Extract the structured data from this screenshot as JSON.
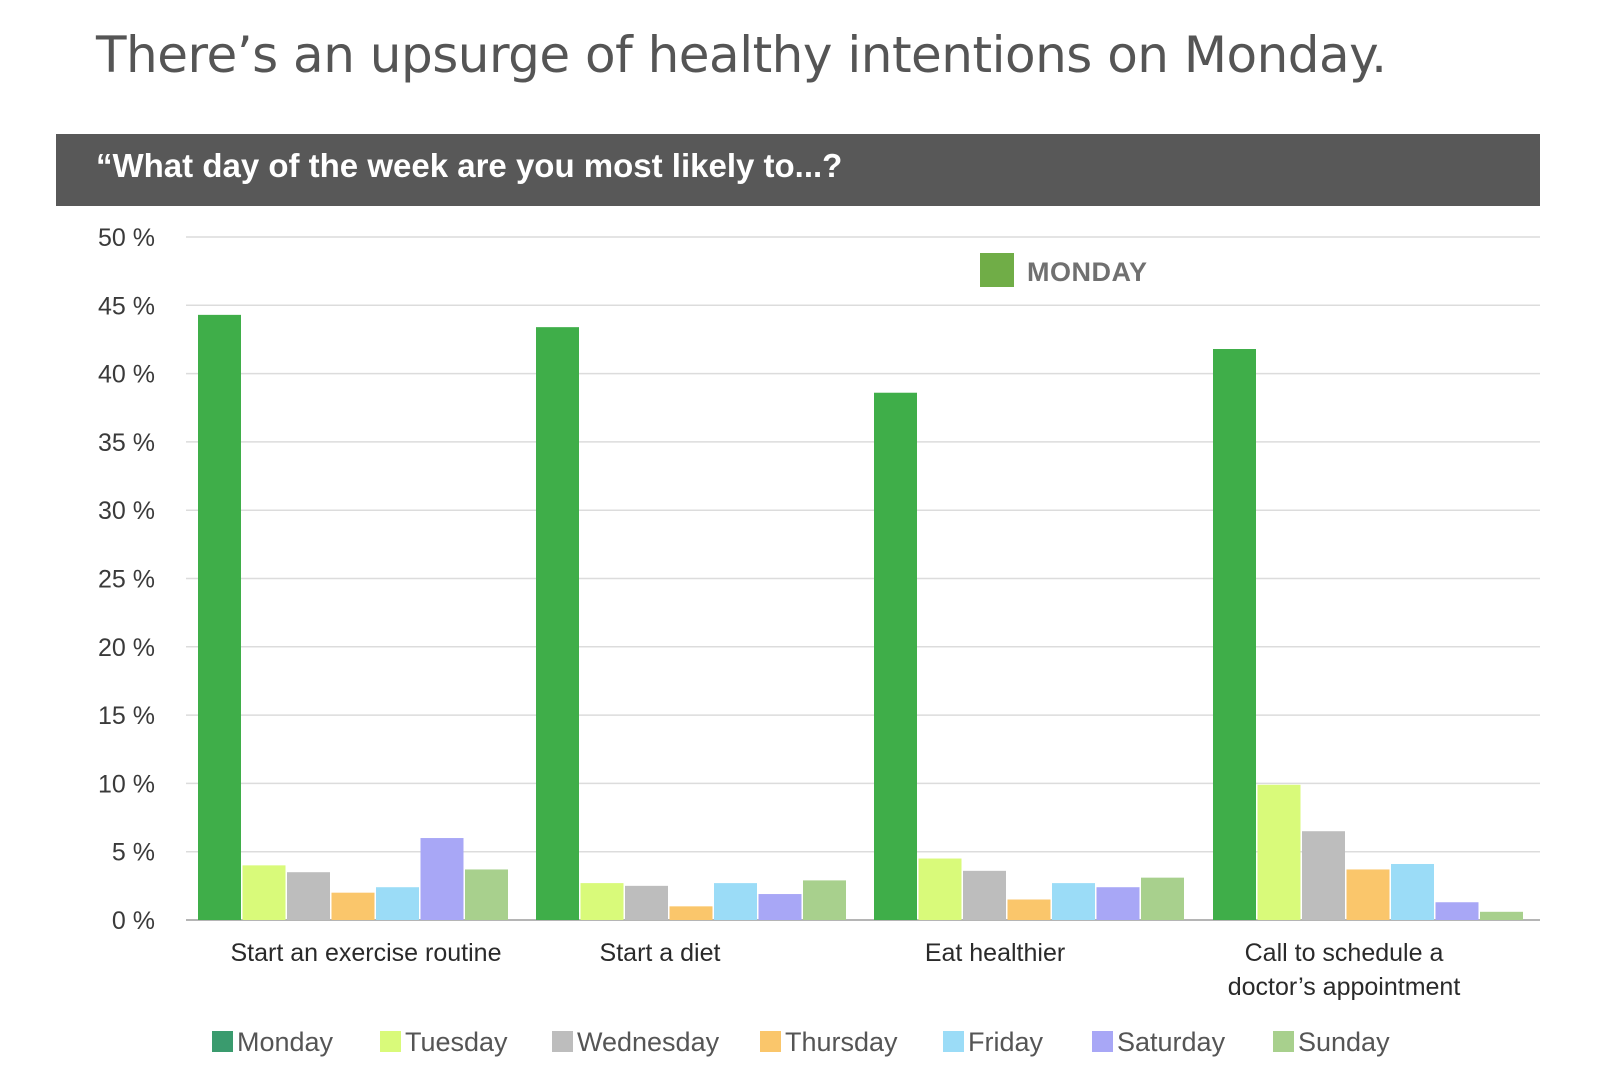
{
  "headline": "There’s an upsurge of healthy intentions on Monday.",
  "banner": "“What day of the week are you most likely to...?",
  "callout": {
    "label": "MONDAY",
    "color": "#70ad47"
  },
  "chart_data": {
    "type": "bar",
    "categories": [
      [
        "Start an exercise routine"
      ],
      [
        "Start a diet"
      ],
      [
        "Eat healthier"
      ],
      [
        "Call to schedule a",
        "doctor’s appointment"
      ]
    ],
    "yticks": [
      "0 %",
      "5 %",
      "10 %",
      "15 %",
      "20 %",
      "25 %",
      "30 %",
      "35 %",
      "40 %",
      "45 %",
      "50 %"
    ],
    "ylim": [
      0,
      50
    ],
    "grid": true,
    "legend_position": "bottom",
    "series": [
      {
        "name": "Monday",
        "color": "#3fae49",
        "legend_color": "#3a9b6e",
        "values": [
          44.3,
          43.4,
          38.6,
          41.8
        ]
      },
      {
        "name": "Tuesday",
        "color": "#d9fa7a",
        "values": [
          4.0,
          2.7,
          4.5,
          9.9
        ]
      },
      {
        "name": "Wednesday",
        "color": "#bdbdbd",
        "values": [
          3.5,
          2.5,
          3.6,
          6.5
        ]
      },
      {
        "name": "Thursday",
        "color": "#fac66b",
        "values": [
          2.0,
          1.0,
          1.5,
          3.7
        ]
      },
      {
        "name": "Friday",
        "color": "#9bdcf7",
        "values": [
          2.4,
          2.7,
          2.7,
          4.1
        ]
      },
      {
        "name": "Saturday",
        "color": "#a8a7f6",
        "values": [
          6.0,
          1.9,
          2.4,
          1.3
        ]
      },
      {
        "name": "Sunday",
        "color": "#a8d08d",
        "values": [
          3.7,
          2.9,
          3.1,
          0.6
        ]
      }
    ]
  }
}
